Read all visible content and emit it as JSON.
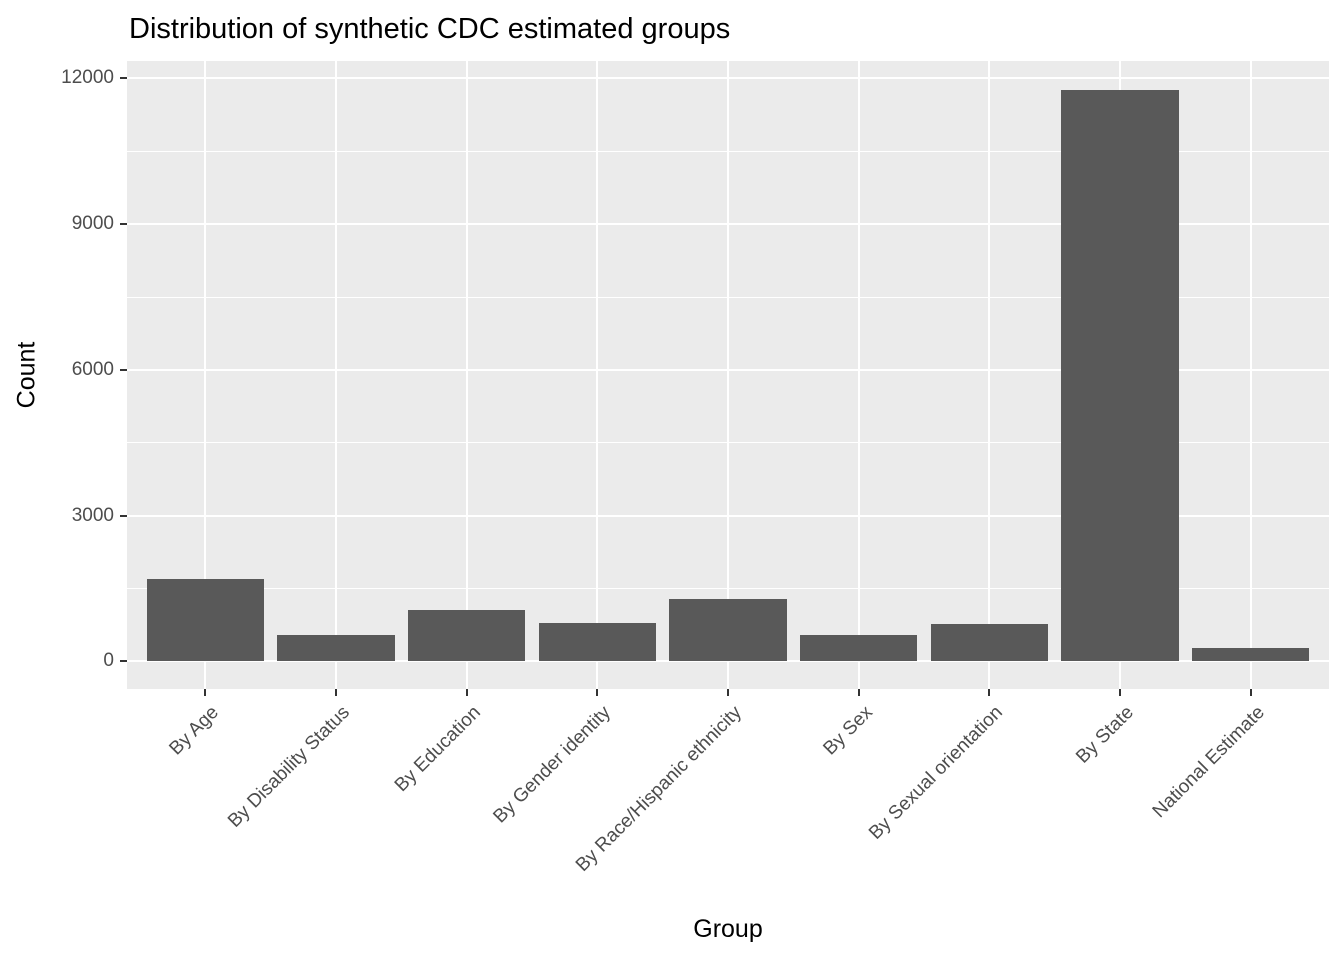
{
  "chart_data": {
    "type": "bar",
    "title": "Distribution of synthetic CDC estimated groups",
    "xlabel": "Group",
    "ylabel": "Count",
    "categories": [
      "By Age",
      "By Disability Status",
      "By Education",
      "By Gender identity",
      "By Race/Hispanic ethnicity",
      "By Sex",
      "By Sexual orientation",
      "By State",
      "National Estimate"
    ],
    "values": [
      1700,
      550,
      1060,
      790,
      1290,
      550,
      775,
      11760,
      280
    ],
    "y_major_ticks": [
      0,
      3000,
      6000,
      9000,
      12000
    ],
    "y_minor_ticks": [
      1500,
      4500,
      7500,
      10500
    ],
    "ylim": [
      -570,
      12360
    ],
    "grid": "on",
    "legend_position": "none",
    "x_label_angle": 45,
    "colors": {
      "bar_fill": "#595959",
      "panel_background": "#EBEBEB",
      "gridline": "#FFFFFF",
      "axis_text": "#4D4D4D",
      "axis_title": "#000000",
      "title_text": "#000000",
      "tick_mark": "#333333"
    }
  }
}
